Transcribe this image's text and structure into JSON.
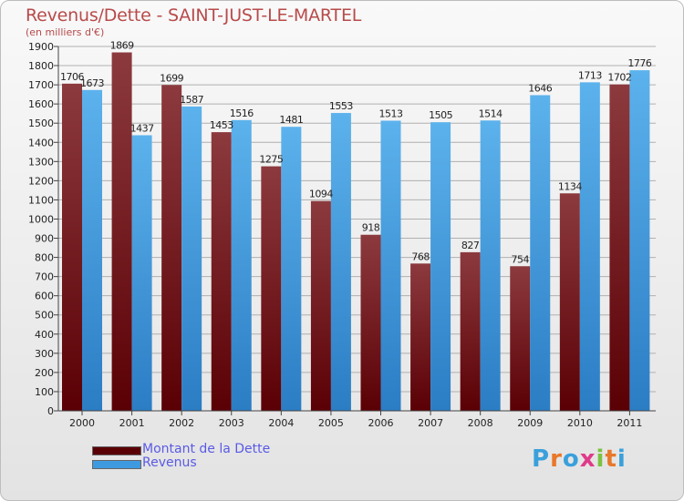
{
  "header": {
    "title": "Revenus/Dette - SAINT-JUST-LE-MARTEL",
    "subtitle": "(en milliers d'€)"
  },
  "legend": {
    "debt_label": "Montant de la Dette",
    "revenue_label": "Revenus"
  },
  "logo": {
    "text": "Proxiti"
  },
  "colors": {
    "debt_dark": "#5a0005",
    "debt_light": "#8c3a3e",
    "revenue_dark": "#2b7dc4",
    "revenue_light": "#5cb2ec",
    "axis_text": "#222222",
    "grid": "#b0b0b0"
  },
  "chart_data": {
    "type": "bar",
    "title": "Revenus/Dette - SAINT-JUST-LE-MARTEL",
    "subtitle": "(en milliers d'€)",
    "categories": [
      "2000",
      "2001",
      "2002",
      "2003",
      "2004",
      "2005",
      "2006",
      "2007",
      "2008",
      "2009",
      "2010",
      "2011"
    ],
    "series": [
      {
        "name": "Montant de la Dette",
        "values": [
          1706,
          1869,
          1699,
          1453,
          1275,
          1094,
          918,
          768,
          827,
          754,
          1134,
          1702
        ]
      },
      {
        "name": "Revenus",
        "values": [
          1673,
          1437,
          1587,
          1516,
          1481,
          1553,
          1513,
          1505,
          1514,
          1646,
          1713,
          1776
        ]
      }
    ],
    "yticks": [
      0,
      100,
      200,
      300,
      400,
      500,
      600,
      700,
      800,
      900,
      1000,
      1100,
      1200,
      1300,
      1400,
      1500,
      1600,
      1700,
      1800,
      1900
    ],
    "ylim": [
      0,
      1900
    ],
    "grid": true,
    "legend_position": "bottom-left"
  }
}
